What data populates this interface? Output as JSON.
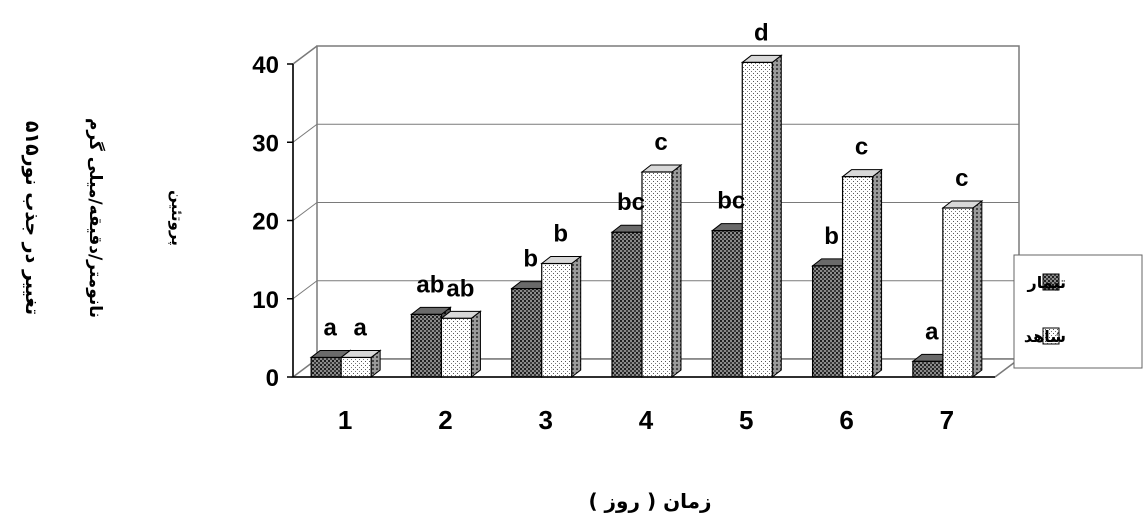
{
  "chart_data": {
    "type": "bar",
    "categories": [
      "1",
      "2",
      "3",
      "4",
      "5",
      "6",
      "7"
    ],
    "series": [
      {
        "name": "تیمار",
        "values": [
          2.5,
          8.0,
          11.3,
          18.5,
          18.7,
          14.2,
          2.0
        ],
        "letters": [
          "a",
          "ab",
          "b",
          "bc",
          "bc",
          "b",
          "a"
        ],
        "pattern": "dark-dots"
      },
      {
        "name": "شاهد",
        "values": [
          2.5,
          7.5,
          14.5,
          26.2,
          40.2,
          25.6,
          21.6
        ],
        "letters": [
          "a",
          "ab",
          "b",
          "c",
          "d",
          "c",
          "c"
        ],
        "pattern": "light-dots"
      }
    ],
    "xlabel": "زمان ( روز )",
    "ylabel_lines": [
      "تغییر در جذب نور۵۱۵",
      "نانومتر/دقیقه/میلی گرم",
      "پروتئین"
    ],
    "ylim": [
      0,
      40
    ],
    "yticks": [
      "0",
      "10",
      "20",
      "30",
      "40"
    ],
    "grid": true,
    "legend_position": "right",
    "chart_style": "3d-clustered-column"
  }
}
